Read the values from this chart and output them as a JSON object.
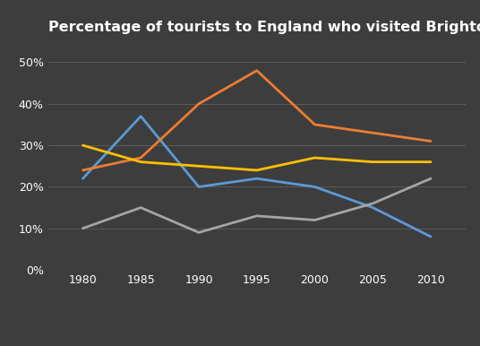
{
  "title": "Percentage of tourists to England who visited Brighton attractions",
  "years": [
    1980,
    1985,
    1990,
    1995,
    2000,
    2005,
    2010
  ],
  "series": {
    "Art Gallery": {
      "values": [
        22,
        37,
        20,
        22,
        20,
        15,
        8
      ],
      "color": "#5b9bd5"
    },
    "Pavilion": {
      "values": [
        24,
        27,
        40,
        48,
        35,
        33,
        31
      ],
      "color": "#ed7d31"
    },
    "Pier": {
      "values": [
        10,
        15,
        9,
        13,
        12,
        16,
        22
      ],
      "color": "#a5a5a5"
    },
    "Festival": {
      "values": [
        30,
        26,
        25,
        24,
        27,
        26,
        26
      ],
      "color": "#ffc000"
    }
  },
  "ylim": [
    0,
    55
  ],
  "yticks": [
    0,
    10,
    20,
    30,
    40,
    50
  ],
  "ytick_labels": [
    "0%",
    "10%",
    "20%",
    "30%",
    "40%",
    "50%"
  ],
  "background_color": "#3d3d3d",
  "grid_color": "#5a5a5a",
  "text_color": "#ffffff",
  "title_fontsize": 11.5,
  "legend_fontsize": 9,
  "tick_fontsize": 9,
  "linewidth": 2.0
}
